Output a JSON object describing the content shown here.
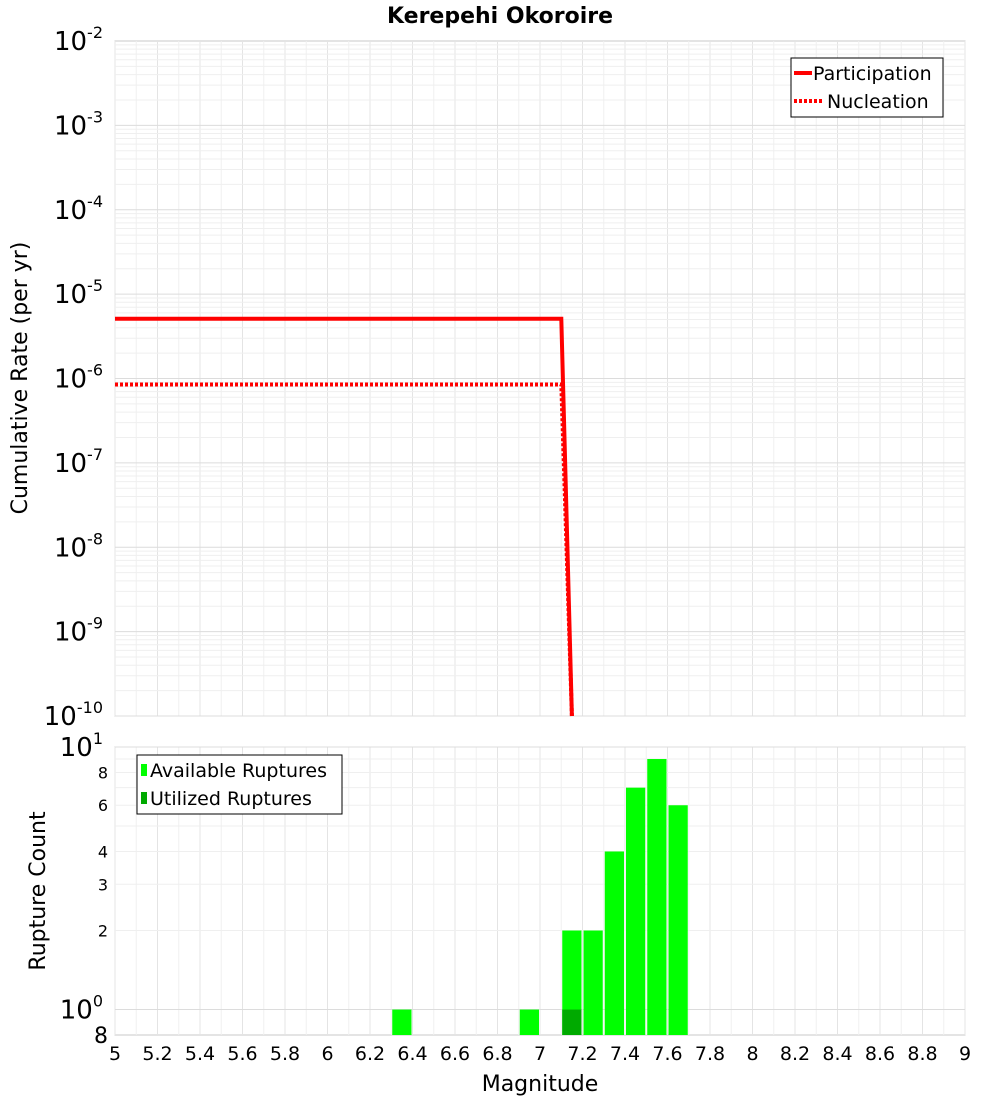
{
  "title": "Kerepehi Okoroire",
  "chart_data": [
    {
      "type": "line",
      "title": "Kerepehi Okoroire",
      "xlabel": "",
      "ylabel": "Cumulative Rate (per yr)",
      "xlim": [
        5,
        9
      ],
      "ylim": [
        1e-10,
        0.01
      ],
      "yscale": "log",
      "grid": true,
      "y_ticks": [
        {
          "value": 0.01,
          "base": "10",
          "exp": "-2"
        },
        {
          "value": 0.001,
          "base": "10",
          "exp": "-3"
        },
        {
          "value": 0.0001,
          "base": "10",
          "exp": "-4"
        },
        {
          "value": 1e-05,
          "base": "10",
          "exp": "-5"
        },
        {
          "value": 1e-06,
          "base": "10",
          "exp": "-6"
        },
        {
          "value": 1e-07,
          "base": "10",
          "exp": "-7"
        },
        {
          "value": 1e-08,
          "base": "10",
          "exp": "-8"
        },
        {
          "value": 1e-09,
          "base": "10",
          "exp": "-9"
        },
        {
          "value": 1e-10,
          "base": "10",
          "exp": "-10"
        }
      ],
      "legend": {
        "position": "top-right",
        "entries": [
          "Participation",
          "Nucleation"
        ]
      },
      "series": [
        {
          "name": "Participation",
          "color": "#ff0000",
          "style": "solid",
          "x": [
            5.0,
            7.1,
            7.15
          ],
          "y": [
            5.1e-06,
            5.1e-06,
            1e-10
          ]
        },
        {
          "name": "Nucleation",
          "color": "#ff0000",
          "style": "dotted",
          "x": [
            5.0,
            7.1,
            7.15
          ],
          "y": [
            8.5e-07,
            8.5e-07,
            1e-10
          ]
        }
      ]
    },
    {
      "type": "bar",
      "title": "",
      "xlabel": "Magnitude",
      "ylabel": "Rupture Count",
      "xlim": [
        5,
        9
      ],
      "ylim": [
        0.8,
        10
      ],
      "yscale": "log",
      "grid": true,
      "bin_width": 0.1,
      "x_ticks": [
        "5",
        "5.2",
        "5.4",
        "5.6",
        "5.8",
        "6",
        "6.2",
        "6.4",
        "6.6",
        "6.8",
        "7",
        "7.2",
        "7.4",
        "7.6",
        "7.8",
        "8",
        "8.2",
        "8.4",
        "8.6",
        "8.8",
        "9"
      ],
      "y_major_ticks": [
        {
          "value": 10,
          "base": "10",
          "exp": "1"
        },
        {
          "value": 1,
          "base": "10",
          "exp": "0"
        }
      ],
      "y_minor_ticks": [
        "8",
        "6",
        "4",
        "3",
        "2",
        "8"
      ],
      "legend": {
        "position": "top-left",
        "entries": [
          "Available Ruptures",
          "Utilized Ruptures"
        ]
      },
      "series": [
        {
          "name": "Available Ruptures",
          "color": "#00ff00",
          "x": [
            6.35,
            6.95,
            7.15,
            7.25,
            7.35,
            7.45,
            7.55,
            7.65
          ],
          "values": [
            1,
            1,
            2,
            2,
            4,
            7,
            9,
            6
          ]
        },
        {
          "name": "Utilized Ruptures",
          "color": "#00aa00",
          "x": [
            7.15
          ],
          "values": [
            1
          ]
        }
      ]
    }
  ]
}
